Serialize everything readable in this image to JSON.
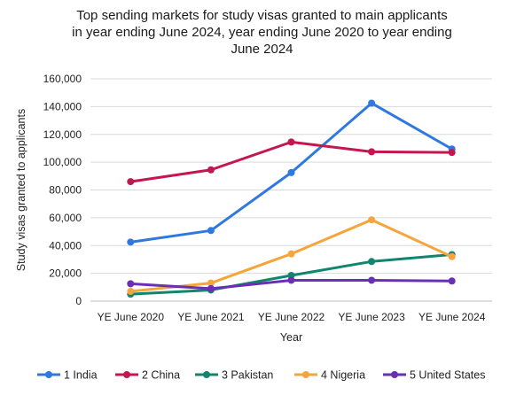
{
  "chart_data": {
    "type": "line",
    "title_lines": [
      "Top sending markets for study visas granted to main applicants",
      "in year ending June 2024, year ending June 2020 to year ending",
      "June 2024"
    ],
    "xlabel": "Year",
    "ylabel": "Study visas granted to applicants",
    "categories": [
      "YE June 2020",
      "YE June 2021",
      "YE June 2022",
      "YE June 2023",
      "YE June 2024"
    ],
    "ylim": [
      0,
      160000
    ],
    "yticks": [
      0,
      20000,
      40000,
      60000,
      80000,
      100000,
      120000,
      140000,
      160000
    ],
    "ytick_labels": [
      "0",
      "20,000",
      "40,000",
      "60,000",
      "80,000",
      "100,000",
      "120,000",
      "140,000",
      "160,000"
    ],
    "grid": true,
    "legend_position": "bottom",
    "series": [
      {
        "name": "1 India",
        "color": "#2f78e0",
        "values": [
          42500,
          50800,
          92500,
          142500,
          109500
        ]
      },
      {
        "name": "2 China",
        "color": "#c4174f",
        "values": [
          86000,
          94500,
          114500,
          107500,
          107000
        ]
      },
      {
        "name": "3 Pakistan",
        "color": "#11856e",
        "values": [
          5000,
          8000,
          18500,
          28500,
          33500
        ]
      },
      {
        "name": "4 Nigeria",
        "color": "#f5a53a",
        "values": [
          7000,
          13000,
          34000,
          58500,
          32000
        ]
      },
      {
        "name": "5 United States",
        "color": "#6a2fb5",
        "values": [
          12500,
          9000,
          15000,
          15000,
          14500
        ]
      }
    ]
  }
}
